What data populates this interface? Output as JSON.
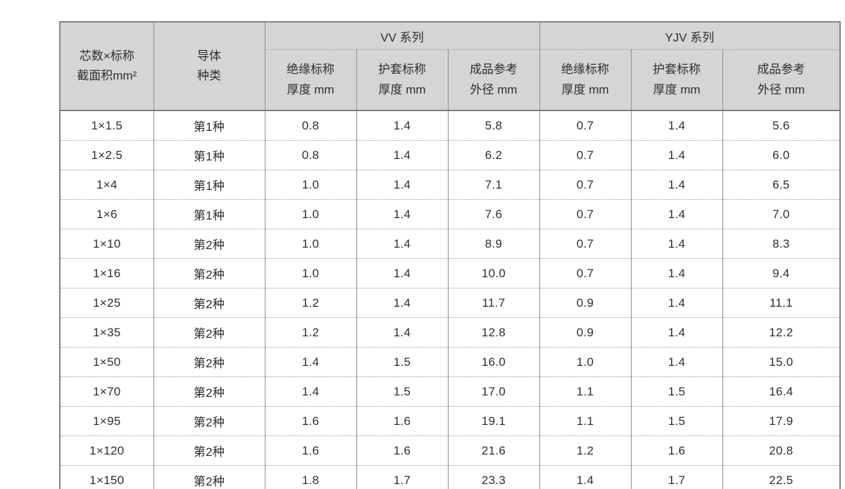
{
  "table": {
    "corner_headers": [
      {
        "line1": "芯数×标称",
        "line2": "截面积mm²"
      },
      {
        "line1": "导体",
        "line2": "种类"
      }
    ],
    "groups": [
      {
        "label": "VV 系列"
      },
      {
        "label": "YJV 系列"
      }
    ],
    "sub_headers": [
      {
        "line1": "绝缘标称",
        "line2": "厚度 mm"
      },
      {
        "line1": "护套标称",
        "line2": "厚度 mm"
      },
      {
        "line1": "成品参考",
        "line2": "外径 mm"
      },
      {
        "line1": "绝缘标称",
        "line2": "厚度 mm"
      },
      {
        "line1": "护套标称",
        "line2": "厚度 mm"
      },
      {
        "line1": "成品参考",
        "line2": "外径 mm"
      }
    ],
    "rows": [
      [
        "1×1.5",
        "第1种",
        "0.8",
        "1.4",
        "5.8",
        "0.7",
        "1.4",
        "5.6"
      ],
      [
        "1×2.5",
        "第1种",
        "0.8",
        "1.4",
        "6.2",
        "0.7",
        "1.4",
        "6.0"
      ],
      [
        "1×4",
        "第1种",
        "1.0",
        "1.4",
        "7.1",
        "0.7",
        "1.4",
        "6.5"
      ],
      [
        "1×6",
        "第1种",
        "1.0",
        "1.4",
        "7.6",
        "0.7",
        "1.4",
        "7.0"
      ],
      [
        "1×10",
        "第2种",
        "1.0",
        "1.4",
        "8.9",
        "0.7",
        "1.4",
        "8.3"
      ],
      [
        "1×16",
        "第2种",
        "1.0",
        "1.4",
        "10.0",
        "0.7",
        "1.4",
        "9.4"
      ],
      [
        "1×25",
        "第2种",
        "1.2",
        "1.4",
        "11.7",
        "0.9",
        "1.4",
        "11.1"
      ],
      [
        "1×35",
        "第2种",
        "1.2",
        "1.4",
        "12.8",
        "0.9",
        "1.4",
        "12.2"
      ],
      [
        "1×50",
        "第2种",
        "1.4",
        "1.5",
        "16.0",
        "1.0",
        "1.4",
        "15.0"
      ],
      [
        "1×70",
        "第2种",
        "1.4",
        "1.5",
        "17.0",
        "1.1",
        "1.5",
        "16.4"
      ],
      [
        "1×95",
        "第2种",
        "1.6",
        "1.6",
        "19.1",
        "1.1",
        "1.5",
        "17.9"
      ],
      [
        "1×120",
        "第2种",
        "1.6",
        "1.6",
        "21.6",
        "1.2",
        "1.6",
        "20.8"
      ],
      [
        "1×150",
        "第2种",
        "1.8",
        "1.7",
        "23.3",
        "1.4",
        "1.7",
        "22.5"
      ]
    ],
    "column_names": [
      "spec",
      "conductor-type",
      "vv-insulation-thickness",
      "vv-sheath-thickness",
      "vv-outer-diameter",
      "yjv-insulation-thickness",
      "yjv-sheath-thickness",
      "yjv-outer-diameter"
    ]
  },
  "colors": {
    "header_bg": "#d5d5d5",
    "outer_border": "#858585",
    "grid_line": "#8f8f8f",
    "text": "#2e2e2e"
  }
}
